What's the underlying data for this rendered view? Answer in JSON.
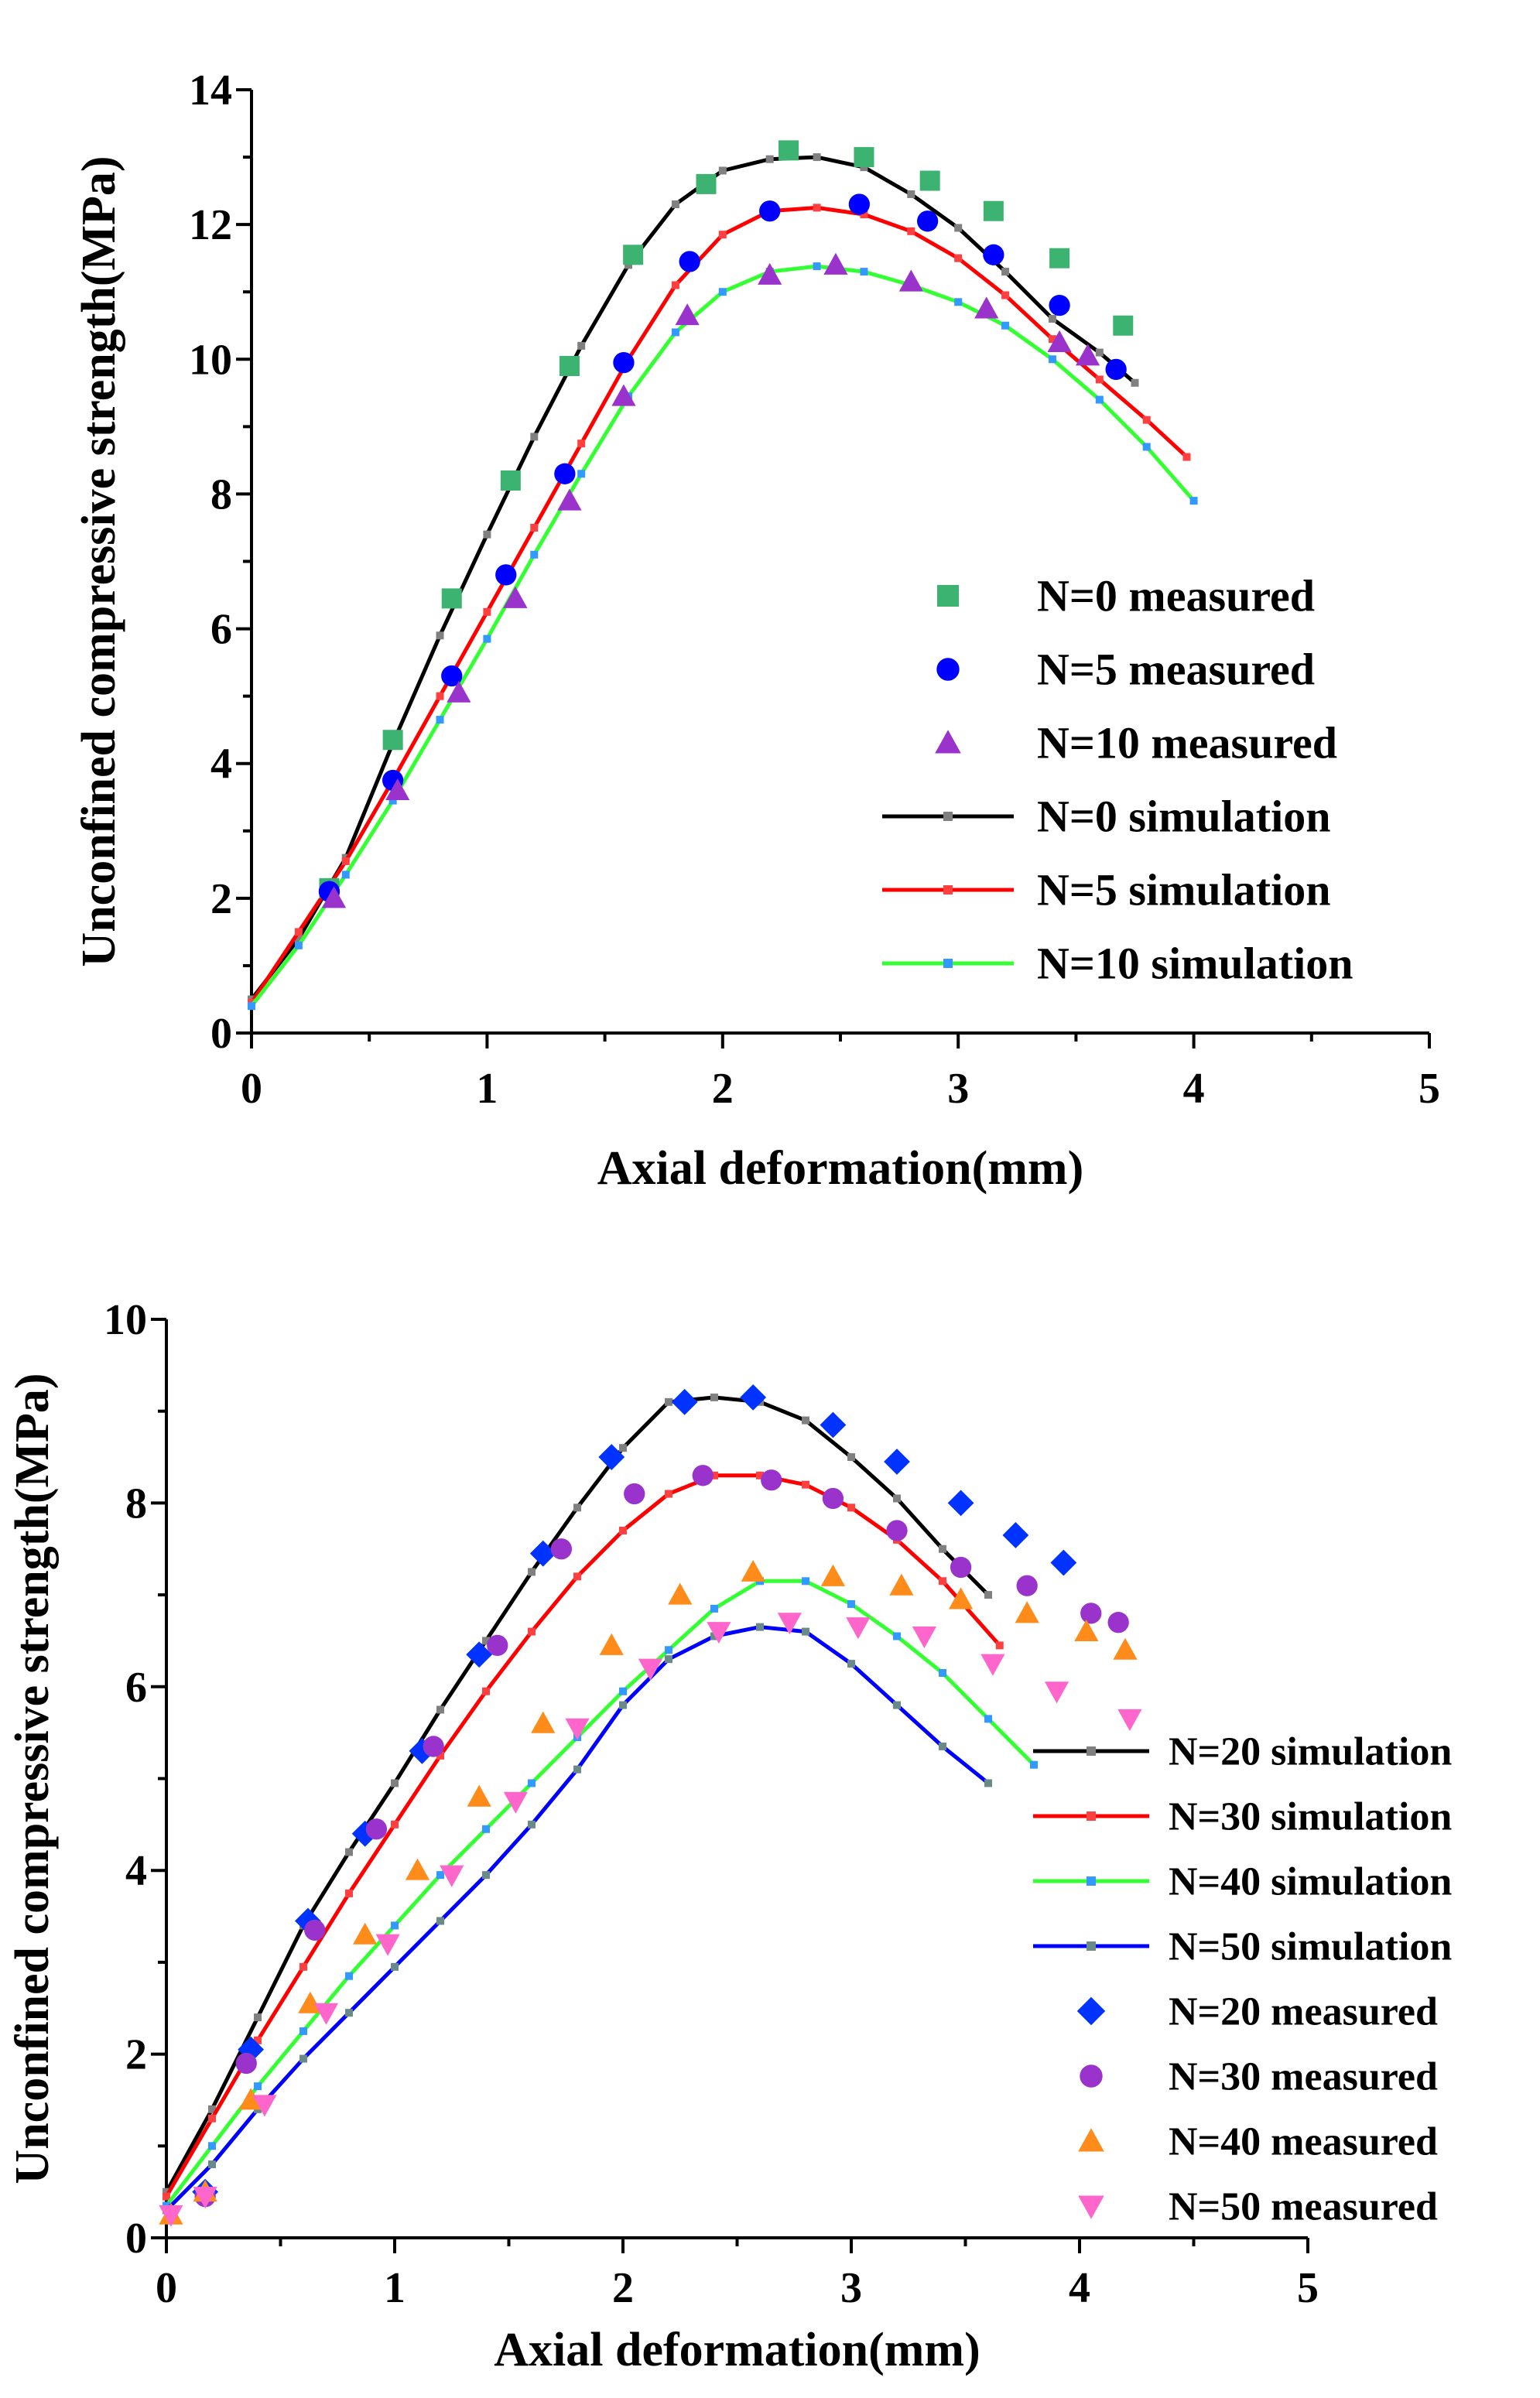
{
  "chart_data": [
    {
      "type": "line",
      "xlabel": "Axial deformation(mm)",
      "ylabel": "Unconfined compressive strength(MPa)",
      "xlim": [
        0,
        5
      ],
      "ylim": [
        0,
        14
      ],
      "xticks": [
        "0",
        "1",
        "2",
        "3",
        "4",
        "5"
      ],
      "yticks": [
        "0",
        "2",
        "4",
        "6",
        "8",
        "10",
        "12",
        "14"
      ],
      "legend_position": "right",
      "measured": [
        {
          "name": "N=0 measured",
          "marker": "square",
          "color": "#3cb371",
          "x": [
            0.33,
            0.6,
            0.85,
            1.1,
            1.35,
            1.62,
            1.93,
            2.28,
            2.6,
            2.88,
            3.15,
            3.43,
            3.7
          ],
          "y": [
            2.15,
            4.35,
            6.45,
            8.2,
            9.9,
            11.55,
            12.6,
            13.1,
            13.0,
            12.65,
            12.2,
            11.5,
            10.5
          ]
        },
        {
          "name": "N=5 measured",
          "marker": "circle",
          "color": "#0000ff",
          "x": [
            0.33,
            0.6,
            0.85,
            1.08,
            1.33,
            1.58,
            1.86,
            2.2,
            2.58,
            2.87,
            3.15,
            3.43,
            3.67
          ],
          "y": [
            2.1,
            3.75,
            5.3,
            6.8,
            8.3,
            9.95,
            11.45,
            12.2,
            12.3,
            12.05,
            11.55,
            10.8,
            9.85
          ]
        },
        {
          "name": "N=10 measured",
          "marker": "triangle",
          "color": "#9933cc",
          "x": [
            0.35,
            0.62,
            0.88,
            1.12,
            1.35,
            1.58,
            1.85,
            2.2,
            2.48,
            2.8,
            3.12,
            3.43,
            3.55
          ],
          "y": [
            2.0,
            3.6,
            5.05,
            6.45,
            7.9,
            9.45,
            10.65,
            11.25,
            11.4,
            11.15,
            10.75,
            10.25,
            10.05
          ]
        }
      ],
      "simulation": [
        {
          "name": "N=0 simulation",
          "color": "#000000",
          "marker_color": "#808080",
          "x": [
            0,
            0.2,
            0.4,
            0.6,
            0.8,
            1.0,
            1.2,
            1.4,
            1.6,
            1.8,
            2.0,
            2.2,
            2.4,
            2.6,
            2.8,
            3.0,
            3.2,
            3.4,
            3.6,
            3.75
          ],
          "y": [
            0.5,
            1.4,
            2.6,
            4.3,
            5.9,
            7.4,
            8.85,
            10.2,
            11.4,
            12.3,
            12.8,
            12.97,
            13.0,
            12.85,
            12.45,
            11.95,
            11.3,
            10.6,
            10.1,
            9.65
          ]
        },
        {
          "name": "N=5 simulation",
          "color": "#ff0000",
          "marker_color": "#ff4040",
          "x": [
            0,
            0.2,
            0.4,
            0.6,
            0.8,
            1.0,
            1.2,
            1.4,
            1.6,
            1.8,
            2.0,
            2.2,
            2.4,
            2.6,
            2.8,
            3.0,
            3.2,
            3.4,
            3.6,
            3.8,
            3.97
          ],
          "y": [
            0.45,
            1.5,
            2.55,
            3.75,
            5.0,
            6.25,
            7.5,
            8.75,
            10.0,
            11.1,
            11.85,
            12.2,
            12.25,
            12.15,
            11.9,
            11.5,
            10.95,
            10.3,
            9.7,
            9.1,
            8.55
          ]
        },
        {
          "name": "N=10 simulation",
          "color": "#33ff33",
          "marker_color": "#3399ff",
          "x": [
            0,
            0.2,
            0.4,
            0.6,
            0.8,
            1.0,
            1.2,
            1.4,
            1.6,
            1.8,
            2.0,
            2.2,
            2.4,
            2.6,
            2.8,
            3.0,
            3.2,
            3.4,
            3.6,
            3.8,
            4.0
          ],
          "y": [
            0.4,
            1.3,
            2.35,
            3.45,
            4.65,
            5.85,
            7.1,
            8.3,
            9.45,
            10.4,
            11.0,
            11.3,
            11.38,
            11.3,
            11.1,
            10.85,
            10.5,
            10.0,
            9.4,
            8.7,
            7.9
          ]
        }
      ]
    },
    {
      "type": "line",
      "xlabel": "Axial deformation(mm)",
      "ylabel": "Unconfined compressive strength(MPa)",
      "xlim": [
        0,
        5
      ],
      "ylim": [
        0,
        10
      ],
      "xticks": [
        "0",
        "1",
        "2",
        "3",
        "4",
        "5"
      ],
      "yticks": [
        "0",
        "2",
        "4",
        "6",
        "8",
        "10"
      ],
      "legend_position": "right",
      "simulation": [
        {
          "name": "N=20 simulation",
          "color": "#000000",
          "marker_color": "#808080",
          "x": [
            0,
            0.2,
            0.4,
            0.6,
            0.8,
            1.0,
            1.2,
            1.4,
            1.6,
            1.8,
            2.0,
            2.2,
            2.4,
            2.6,
            2.8,
            3.0,
            3.2,
            3.4,
            3.6
          ],
          "y": [
            0.5,
            1.4,
            2.4,
            3.4,
            4.2,
            4.95,
            5.75,
            6.5,
            7.25,
            7.95,
            8.6,
            9.1,
            9.15,
            9.1,
            8.9,
            8.5,
            8.05,
            7.5,
            7.0
          ]
        },
        {
          "name": "N=30 simulation",
          "color": "#ff0000",
          "marker_color": "#ff4040",
          "x": [
            0,
            0.2,
            0.4,
            0.6,
            0.8,
            1.0,
            1.2,
            1.4,
            1.6,
            1.8,
            2.0,
            2.2,
            2.4,
            2.6,
            2.8,
            3.0,
            3.2,
            3.4,
            3.65
          ],
          "y": [
            0.45,
            1.3,
            2.15,
            2.95,
            3.75,
            4.5,
            5.25,
            5.95,
            6.6,
            7.2,
            7.7,
            8.1,
            8.3,
            8.3,
            8.2,
            7.95,
            7.6,
            7.15,
            6.45
          ]
        },
        {
          "name": "N=40 simulation",
          "color": "#33ff33",
          "marker_color": "#3399ff",
          "x": [
            0,
            0.2,
            0.4,
            0.6,
            0.8,
            1.0,
            1.2,
            1.4,
            1.6,
            1.8,
            2.0,
            2.2,
            2.4,
            2.6,
            2.8,
            3.0,
            3.2,
            3.4,
            3.6,
            3.8
          ],
          "y": [
            0.35,
            1.0,
            1.65,
            2.25,
            2.85,
            3.4,
            3.95,
            4.45,
            4.95,
            5.45,
            5.95,
            6.4,
            6.85,
            7.15,
            7.15,
            6.9,
            6.55,
            6.15,
            5.65,
            5.15
          ]
        },
        {
          "name": "N=50 simulation",
          "color": "#0000ff",
          "marker_color": "#6a8a8a",
          "x": [
            0,
            0.2,
            0.4,
            0.6,
            0.8,
            1.0,
            1.2,
            1.4,
            1.6,
            1.8,
            2.0,
            2.2,
            2.4,
            2.6,
            2.8,
            3.0,
            3.2,
            3.4,
            3.6
          ],
          "y": [
            0.3,
            0.8,
            1.4,
            1.95,
            2.45,
            2.95,
            3.45,
            3.95,
            4.5,
            5.1,
            5.8,
            6.3,
            6.55,
            6.65,
            6.6,
            6.25,
            5.8,
            5.35,
            4.95
          ]
        }
      ],
      "measured": [
        {
          "name": "N=20 measured",
          "marker": "diamond",
          "color": "#0033ff",
          "x": [
            0.17,
            0.37,
            0.62,
            0.87,
            1.12,
            1.37,
            1.65,
            1.95,
            2.27,
            2.57,
            2.92,
            3.2,
            3.48,
            3.72,
            3.93
          ],
          "y": [
            0.5,
            2.05,
            3.45,
            4.4,
            5.3,
            6.35,
            7.45,
            8.5,
            9.1,
            9.15,
            8.85,
            8.45,
            8.0,
            7.65,
            7.35
          ]
        },
        {
          "name": "N=30 measured",
          "marker": "circle",
          "color": "#9933cc",
          "x": [
            0.17,
            0.35,
            0.65,
            0.92,
            1.17,
            1.45,
            1.73,
            2.05,
            2.35,
            2.65,
            2.92,
            3.2,
            3.48,
            3.77,
            4.05,
            4.17
          ],
          "y": [
            0.45,
            1.9,
            3.35,
            4.45,
            5.35,
            6.45,
            7.5,
            8.1,
            8.3,
            8.25,
            8.05,
            7.7,
            7.3,
            7.1,
            6.8,
            6.7
          ]
        },
        {
          "name": "N=40 measured",
          "marker": "triangle",
          "color": "#ff8c1a",
          "x": [
            0.02,
            0.17,
            0.37,
            0.63,
            0.87,
            1.1,
            1.37,
            1.65,
            1.95,
            2.25,
            2.57,
            2.92,
            3.22,
            3.48,
            3.77,
            4.03,
            4.2
          ],
          "y": [
            0.25,
            0.5,
            1.5,
            2.55,
            3.3,
            4.0,
            4.8,
            5.6,
            6.45,
            7.0,
            7.25,
            7.2,
            7.1,
            6.95,
            6.8,
            6.6,
            6.4
          ]
        },
        {
          "name": "N=50 measured",
          "marker": "triangle-down",
          "color": "#ff66cc",
          "x": [
            0.02,
            0.17,
            0.43,
            0.7,
            0.97,
            1.25,
            1.53,
            1.8,
            2.12,
            2.42,
            2.73,
            3.03,
            3.32,
            3.62,
            3.9,
            4.22
          ],
          "y": [
            0.25,
            0.45,
            1.45,
            2.45,
            3.2,
            3.95,
            4.75,
            5.55,
            6.2,
            6.6,
            6.7,
            6.65,
            6.55,
            6.25,
            5.95,
            5.65
          ]
        }
      ]
    }
  ]
}
